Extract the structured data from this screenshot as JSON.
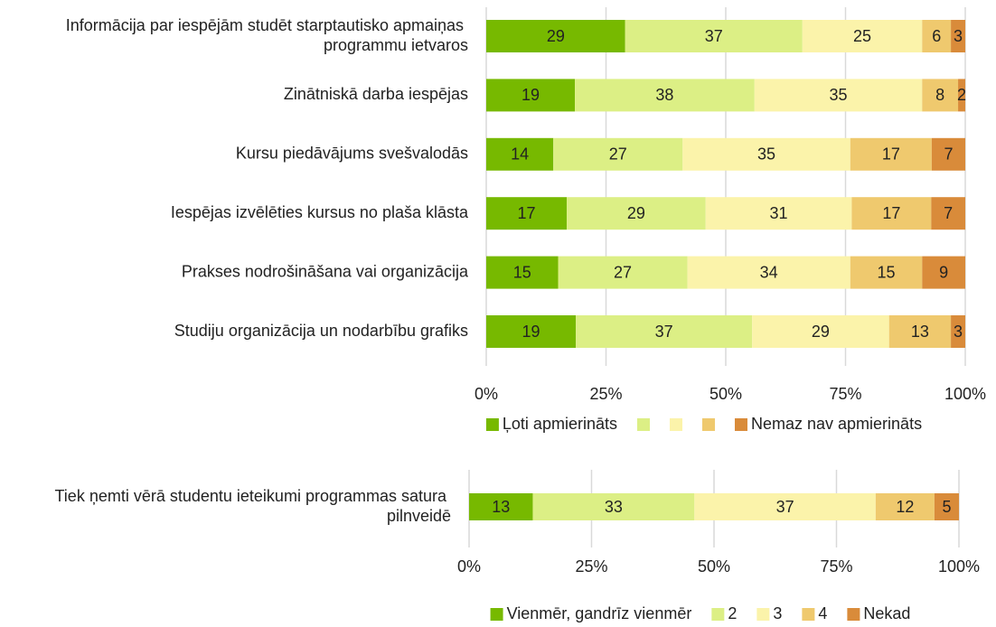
{
  "chart_data": [
    {
      "type": "bar",
      "orientation": "horizontal",
      "stacked": true,
      "categories": [
        "Informācija par iespējām studēt starptautisko apmaiņas programmu ietvaros",
        "Zinātniskā darba iespējas",
        "Kursu piedāvājums svešvalodās",
        "Iespējas izvēlēties kursus no plaša klāsta",
        "Prakses nodrošināšana vai organizācija",
        "Studiju organizācija un nodarbību grafiks"
      ],
      "series": [
        {
          "name": "Ļoti apmierināts",
          "color": "#77b900",
          "values": [
            29,
            18.5,
            14,
            16.8,
            15,
            18.7
          ],
          "value_labels": [
            "29",
            "19",
            "14",
            "17",
            "15",
            "19"
          ]
        },
        {
          "name": null,
          "color": "#dcef85",
          "values": [
            37,
            37.5,
            27,
            29,
            27,
            36.8
          ],
          "value_labels": [
            "37",
            "38",
            "27",
            "29",
            "27",
            "37"
          ]
        },
        {
          "name": null,
          "color": "#fbf3aa",
          "values": [
            25,
            35,
            35,
            30.5,
            34,
            28.6
          ],
          "value_labels": [
            "25",
            "35",
            "35",
            "31",
            "34",
            "29"
          ]
        },
        {
          "name": null,
          "color": "#efc96e",
          "values": [
            6,
            7.5,
            17,
            16.6,
            15,
            12.9
          ],
          "value_labels": [
            "6",
            "8",
            "17",
            "17",
            "15",
            "13"
          ]
        },
        {
          "name": "Nemaz nav apmierināts",
          "color": "#d98b3a",
          "values": [
            3,
            1.5,
            7,
            7.1,
            9,
            3
          ],
          "value_labels": [
            "3",
            "2",
            "7",
            "7",
            "9",
            "3"
          ]
        }
      ],
      "xlim": [
        0,
        100
      ],
      "xticks": [
        {
          "value": 0,
          "label": "0%"
        },
        {
          "value": 25,
          "label": "25%"
        },
        {
          "value": 50,
          "label": "50%"
        },
        {
          "value": 75,
          "label": "75%"
        },
        {
          "value": 100,
          "label": "100%"
        }
      ],
      "grid": true
    },
    {
      "type": "bar",
      "orientation": "horizontal",
      "stacked": true,
      "categories": [
        "Tiek ņemti vērā studentu ieteikumi programmas satura pilnveidē"
      ],
      "series": [
        {
          "name": "Vienmēr, gandrīz vienmēr",
          "color": "#77b900",
          "values": [
            13
          ]
        },
        {
          "name": "2",
          "color": "#dcef85",
          "values": [
            33
          ]
        },
        {
          "name": "3",
          "color": "#fbf3aa",
          "values": [
            37
          ]
        },
        {
          "name": "4",
          "color": "#efc96e",
          "values": [
            12
          ]
        },
        {
          "name": "Nekad",
          "color": "#d98b3a",
          "values": [
            5
          ]
        }
      ],
      "xlim": [
        0,
        100
      ],
      "xticks": [
        {
          "value": 0,
          "label": "0%"
        },
        {
          "value": 25,
          "label": "25%"
        },
        {
          "value": 50,
          "label": "50%"
        },
        {
          "value": 75,
          "label": "75%"
        },
        {
          "value": 100,
          "label": "100%"
        }
      ],
      "grid": true
    }
  ]
}
